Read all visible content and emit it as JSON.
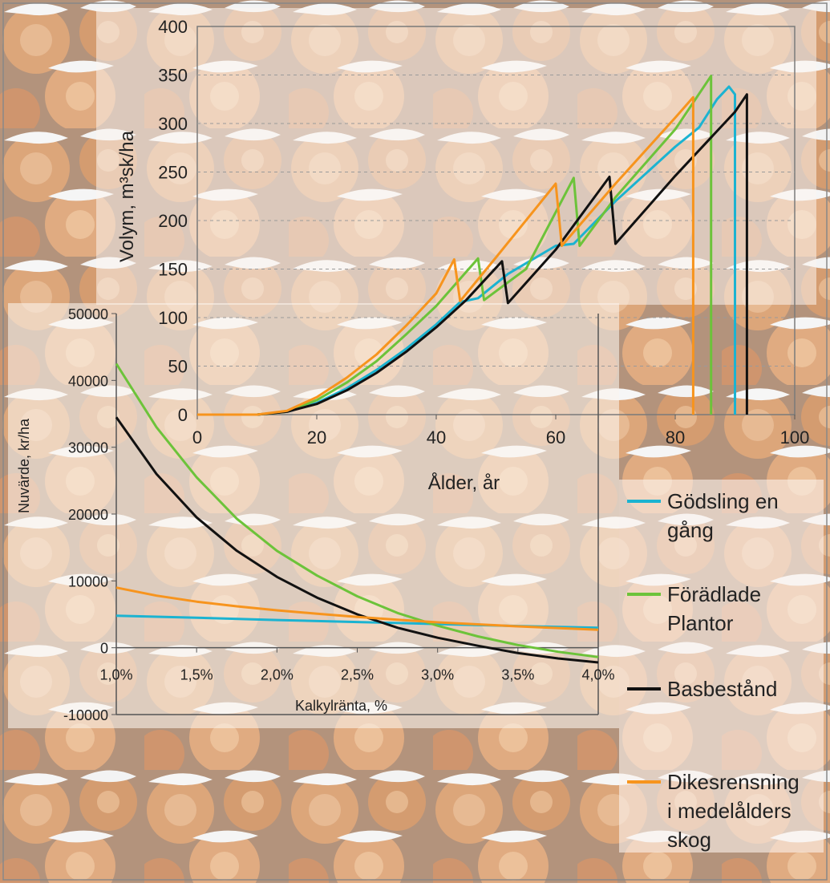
{
  "colors": {
    "gods": "#1bb3d1",
    "foradl": "#6cc33a",
    "bas": "#111111",
    "dikes": "#f7941d"
  },
  "legend": [
    {
      "key": "gods",
      "lines": [
        "Gödsling en",
        "gång"
      ]
    },
    {
      "key": "foradl",
      "lines": [
        "Förädlade",
        "Plantor"
      ]
    },
    {
      "key": "bas",
      "lines": [
        "Basbestånd"
      ]
    },
    {
      "key": "dikes",
      "lines": [
        "Dikesrensning",
        "i medelålders",
        "skog"
      ]
    }
  ],
  "chart_data": [
    {
      "type": "line",
      "xlabel": "Ålder, år",
      "ylabel": "Volym, m³sk/ha",
      "xlim": [
        0,
        100
      ],
      "ylim": [
        0,
        400
      ],
      "xticks": [
        "0",
        "20",
        "40",
        "60",
        "80",
        "100"
      ],
      "yticks": [
        "0",
        "50",
        "100",
        "150",
        "200",
        "250",
        "300",
        "350",
        "400"
      ],
      "grid": "horizontal dashed",
      "series": [
        {
          "name": "Gödsling en gång",
          "key": "gods",
          "points": [
            [
              0,
              0
            ],
            [
              10,
              0
            ],
            [
              15,
              3
            ],
            [
              20,
              12
            ],
            [
              25,
              27
            ],
            [
              30,
              46
            ],
            [
              35,
              68
            ],
            [
              40,
              93
            ],
            [
              44,
              116
            ],
            [
              47,
              120
            ],
            [
              52,
              145
            ],
            [
              60,
              174
            ],
            [
              63,
              176
            ],
            [
              70,
              220
            ],
            [
              80,
              276
            ],
            [
              84,
              296
            ],
            [
              87,
              325
            ],
            [
              89,
              338
            ],
            [
              90,
              330
            ],
            [
              90,
              0
            ]
          ]
        },
        {
          "name": "Förädlade Plantor",
          "key": "foradl",
          "points": [
            [
              0,
              0
            ],
            [
              10,
              0
            ],
            [
              15,
              3
            ],
            [
              20,
              15
            ],
            [
              25,
              33
            ],
            [
              30,
              55
            ],
            [
              35,
              83
            ],
            [
              40,
              112
            ],
            [
              47,
              161
            ],
            [
              48,
              118
            ],
            [
              55,
              150
            ],
            [
              63,
              244
            ],
            [
              64,
              174
            ],
            [
              70,
              224
            ],
            [
              80,
              294
            ],
            [
              86,
              349
            ],
            [
              86,
              0
            ]
          ]
        },
        {
          "name": "Basbestånd",
          "key": "bas",
          "points": [
            [
              0,
              0
            ],
            [
              10,
              0
            ],
            [
              15,
              3
            ],
            [
              20,
              11
            ],
            [
              25,
              25
            ],
            [
              30,
              43
            ],
            [
              35,
              65
            ],
            [
              40,
              90
            ],
            [
              45,
              118
            ],
            [
              51,
              158
            ],
            [
              52,
              115
            ],
            [
              60,
              170
            ],
            [
              69,
              245
            ],
            [
              70,
              176
            ],
            [
              80,
              246
            ],
            [
              90,
              312
            ],
            [
              92,
              330
            ],
            [
              92,
              0
            ]
          ]
        },
        {
          "name": "Dikesrensning i medelålders skog",
          "key": "dikes",
          "points": [
            [
              0,
              0
            ],
            [
              10,
              0
            ],
            [
              15,
              4
            ],
            [
              20,
              18
            ],
            [
              25,
              38
            ],
            [
              30,
              62
            ],
            [
              35,
              92
            ],
            [
              40,
              125
            ],
            [
              43,
              160
            ],
            [
              44,
              117
            ],
            [
              50,
              162
            ],
            [
              60,
              238
            ],
            [
              61,
              174
            ],
            [
              70,
              238
            ],
            [
              80,
              306
            ],
            [
              83,
              327
            ],
            [
              83,
              0
            ]
          ]
        }
      ]
    },
    {
      "type": "line",
      "xlabel": "Kalkylränta, %",
      "ylabel": "Nuvärde, kr/ha",
      "xlim": [
        1.0,
        4.0
      ],
      "ylim": [
        -10000,
        50000
      ],
      "xticks": [
        "1,0%",
        "1,5%",
        "2,0%",
        "2,5%",
        "3,0%",
        "3,5%",
        "4,0%"
      ],
      "yticks": [
        "-10000",
        "0",
        "10000",
        "20000",
        "30000",
        "40000",
        "50000"
      ],
      "series": [
        {
          "name": "Gödsling en gång",
          "key": "gods",
          "points": [
            [
              1.0,
              4800
            ],
            [
              1.5,
              4500
            ],
            [
              2.0,
              4150
            ],
            [
              2.5,
              3850
            ],
            [
              3.0,
              3550
            ],
            [
              3.5,
              3250
            ],
            [
              4.0,
              3000
            ]
          ]
        },
        {
          "name": "Förädlade Plantor",
          "key": "foradl",
          "points": [
            [
              1.0,
              42500
            ],
            [
              1.25,
              33000
            ],
            [
              1.5,
              25500
            ],
            [
              1.75,
              19300
            ],
            [
              2.0,
              14500
            ],
            [
              2.25,
              10800
            ],
            [
              2.5,
              7700
            ],
            [
              2.75,
              5200
            ],
            [
              3.0,
              3300
            ],
            [
              3.25,
              1700
            ],
            [
              3.5,
              400
            ],
            [
              3.75,
              -600
            ],
            [
              4.0,
              -1400
            ]
          ]
        },
        {
          "name": "Basbestånd",
          "key": "bas",
          "points": [
            [
              1.0,
              34500
            ],
            [
              1.25,
              26000
            ],
            [
              1.5,
              19500
            ],
            [
              1.75,
              14500
            ],
            [
              2.0,
              10600
            ],
            [
              2.25,
              7500
            ],
            [
              2.5,
              5000
            ],
            [
              2.75,
              3000
            ],
            [
              3.0,
              1500
            ],
            [
              3.25,
              300
            ],
            [
              3.5,
              -800
            ],
            [
              3.75,
              -1600
            ],
            [
              4.0,
              -2200
            ]
          ]
        },
        {
          "name": "Dikesrensning i medelålders skog",
          "key": "dikes",
          "points": [
            [
              1.0,
              9000
            ],
            [
              1.25,
              7800
            ],
            [
              1.5,
              6900
            ],
            [
              1.75,
              6200
            ],
            [
              2.0,
              5600
            ],
            [
              2.25,
              5100
            ],
            [
              2.5,
              4600
            ],
            [
              2.75,
              4200
            ],
            [
              3.0,
              3800
            ],
            [
              3.25,
              3500
            ],
            [
              3.5,
              3200
            ],
            [
              3.75,
              2950
            ],
            [
              4.0,
              2700
            ]
          ]
        }
      ]
    }
  ]
}
